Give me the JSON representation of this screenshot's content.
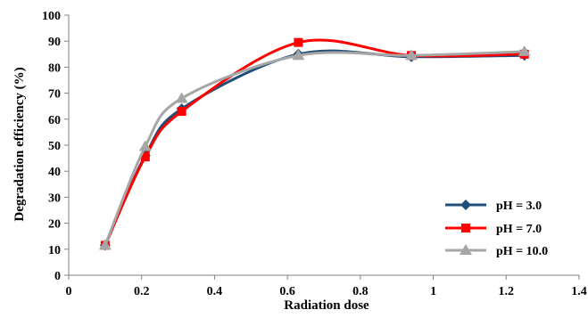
{
  "chart_data": {
    "type": "line",
    "xlabel": "Radiation dose",
    "ylabel": "Degradation efficiency (%)",
    "xlim": [
      0,
      1.4
    ],
    "ylim": [
      0,
      100
    ],
    "x_ticks": [
      0,
      0.2,
      0.4,
      0.6,
      0.8,
      1,
      1.2,
      1.4
    ],
    "x_tick_labels": [
      "0",
      "0.2",
      "0.4",
      "0.6",
      "0.8",
      "1",
      "1.2",
      "1.4"
    ],
    "y_ticks": [
      0,
      10,
      20,
      30,
      40,
      50,
      60,
      70,
      80,
      90,
      100
    ],
    "y_tick_labels": [
      "0",
      "10",
      "20",
      "30",
      "40",
      "50",
      "60",
      "70",
      "80",
      "90",
      "100"
    ],
    "grid": false,
    "legend_position": "bottom-right",
    "smooth_lines": true,
    "x": [
      0.1,
      0.21,
      0.31,
      0.63,
      0.94,
      1.25
    ],
    "series": [
      {
        "name": "pH = 3.0",
        "values": [
          11.5,
          46,
          64,
          85,
          84,
          84.5
        ],
        "color": "#1F4E79",
        "marker": "diamond"
      },
      {
        "name": "pH = 7.0",
        "values": [
          11.5,
          45.5,
          63,
          89.5,
          84.5,
          85
        ],
        "color": "#FF0000",
        "marker": "square"
      },
      {
        "name": "pH = 10.0",
        "values": [
          11.5,
          49.5,
          68,
          84.5,
          84.5,
          86
        ],
        "color": "#A6A6A6",
        "marker": "triangle"
      }
    ]
  }
}
